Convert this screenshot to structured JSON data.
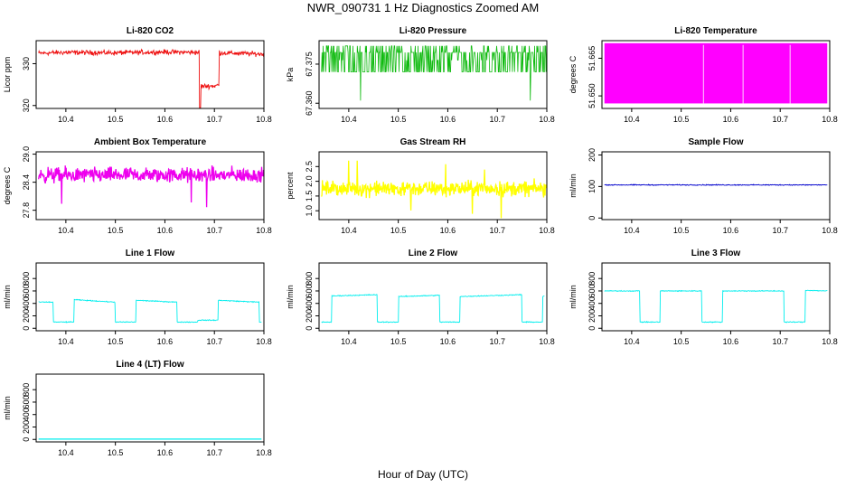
{
  "figure": {
    "title": "NWR_090731  1 Hz Diagnostics Zoomed AM",
    "xlabel": "Hour of Day (UTC)"
  },
  "chart_data": [
    {
      "id": "co2",
      "type": "line",
      "title": "Li-820 CO2",
      "ylabel": "Licor ppm",
      "color": "#ee1111",
      "xlim": [
        10.34,
        10.8
      ],
      "ylim": [
        319.3,
        335.5
      ],
      "xticks": [
        10.4,
        10.5,
        10.6,
        10.7,
        10.8
      ],
      "yticks": [
        320,
        330
      ],
      "x": [
        10.345,
        10.4,
        10.5,
        10.6,
        10.67,
        10.671,
        10.675,
        10.7,
        10.709,
        10.71,
        10.8
      ],
      "y": [
        332.5,
        332.7,
        332.6,
        332.8,
        332.7,
        325.0,
        324.6,
        324.7,
        324.9,
        332.6,
        332.3
      ],
      "noise": 0.5
    },
    {
      "id": "pressure",
      "type": "line",
      "title": "Li-820 Pressure",
      "ylabel": "kPa",
      "color": "#11bb11",
      "xlim": [
        10.34,
        10.8
      ],
      "ylim": [
        67.358,
        67.384
      ],
      "xticks": [
        10.4,
        10.5,
        10.6,
        10.7,
        10.8
      ],
      "yticks": [
        67.36,
        67.375
      ],
      "ytick_labels": [
        "67.360",
        "67.375"
      ],
      "x": [
        10.345,
        10.8
      ],
      "y": [
        67.372,
        67.372
      ],
      "levels": [
        67.382,
        67.3795,
        67.3765,
        67.372,
        67.368,
        67.361
      ]
    },
    {
      "id": "temperature",
      "type": "area",
      "title": "Li-820 Temperature",
      "ylabel": "degrees C",
      "color": "#ff00ff",
      "xlim": [
        10.34,
        10.8
      ],
      "ylim": [
        51.645,
        51.672
      ],
      "xticks": [
        10.4,
        10.5,
        10.6,
        10.7,
        10.8
      ],
      "yticks": [
        51.65,
        51.665
      ],
      "ytick_labels": [
        "51.650",
        "51.665"
      ],
      "x": [
        10.345,
        10.795
      ],
      "y": [
        51.671,
        51.671
      ],
      "baseline": 51.647
    },
    {
      "id": "ambient",
      "type": "line",
      "title": "Ambient Box Temperature",
      "ylabel": "degrees C",
      "color": "#ee00ee",
      "xlim": [
        10.34,
        10.8
      ],
      "ylim": [
        27.6,
        29.05
      ],
      "xticks": [
        10.4,
        10.5,
        10.6,
        10.7,
        10.8
      ],
      "yticks": [
        27.8,
        28.4,
        29.0
      ],
      "ytick_labels": [
        "27.8",
        "28.4",
        "29.0"
      ],
      "x": [
        10.345,
        10.8
      ],
      "y": [
        28.55,
        28.55
      ],
      "noise": 0.14
    },
    {
      "id": "rh",
      "type": "line",
      "title": "Gas Stream RH",
      "ylabel": "percent",
      "color": "#ffff00",
      "xlim": [
        10.34,
        10.8
      ],
      "ylim": [
        0.7,
        3.0
      ],
      "xticks": [
        10.4,
        10.5,
        10.6,
        10.7,
        10.8
      ],
      "yticks": [
        1.0,
        1.5,
        2.0,
        2.5
      ],
      "ytick_labels": [
        "1.0",
        "1.5",
        "2.0",
        "2.5"
      ],
      "x": [
        10.345,
        10.8
      ],
      "y": [
        1.75,
        1.75
      ],
      "noise": 0.22
    },
    {
      "id": "sample",
      "type": "line",
      "title": "Sample Flow",
      "ylabel": "ml/min",
      "color": "#0000cc",
      "xlim": [
        10.34,
        10.8
      ],
      "ylim": [
        -5,
        210
      ],
      "xticks": [
        10.4,
        10.5,
        10.6,
        10.7,
        10.8
      ],
      "yticks": [
        0,
        100,
        200
      ],
      "x": [
        10.345,
        10.795
      ],
      "y": [
        105,
        105
      ],
      "noise": 1.2
    },
    {
      "id": "line1",
      "type": "line",
      "title": "Line 1 Flow",
      "ylabel": "ml/min",
      "color": "#00eeee",
      "xlim": [
        10.34,
        10.8
      ],
      "ylim": [
        -40,
        1050
      ],
      "xticks": [
        10.4,
        10.5,
        10.6,
        10.7,
        10.8
      ],
      "yticks": [
        0,
        200,
        400,
        600,
        800
      ],
      "x": [
        10.345,
        10.374,
        10.375,
        10.416,
        10.417,
        10.499,
        10.5,
        10.541,
        10.542,
        10.624,
        10.625,
        10.666,
        10.667,
        10.707,
        10.708,
        10.79,
        10.791,
        10.795
      ],
      "y": [
        420,
        420,
        100,
        100,
        460,
        420,
        100,
        100,
        450,
        420,
        100,
        100,
        130,
        130,
        450,
        420,
        100,
        100
      ],
      "noise": 6
    },
    {
      "id": "line2",
      "type": "line",
      "title": "Line 2 Flow",
      "ylabel": "ml/min",
      "color": "#00eeee",
      "xlim": [
        10.34,
        10.8
      ],
      "ylim": [
        -40,
        1050
      ],
      "xticks": [
        10.4,
        10.5,
        10.6,
        10.7,
        10.8
      ],
      "yticks": [
        0,
        200,
        400,
        600,
        800
      ],
      "x": [
        10.345,
        10.365,
        10.366,
        10.457,
        10.458,
        10.5,
        10.501,
        10.583,
        10.584,
        10.624,
        10.625,
        10.749,
        10.75,
        10.791,
        10.792,
        10.795
      ],
      "y": [
        100,
        100,
        520,
        540,
        100,
        100,
        510,
        530,
        100,
        100,
        510,
        540,
        100,
        100,
        510,
        520
      ],
      "noise": 6
    },
    {
      "id": "line3",
      "type": "line",
      "title": "Line 3 Flow",
      "ylabel": "ml/min",
      "color": "#00eeee",
      "xlim": [
        10.34,
        10.8
      ],
      "ylim": [
        -40,
        1050
      ],
      "xticks": [
        10.4,
        10.5,
        10.6,
        10.7,
        10.8
      ],
      "yticks": [
        0,
        200,
        400,
        600,
        800
      ],
      "x": [
        10.345,
        10.416,
        10.417,
        10.457,
        10.458,
        10.541,
        10.542,
        10.583,
        10.584,
        10.707,
        10.708,
        10.75,
        10.751,
        10.795
      ],
      "y": [
        600,
        600,
        100,
        100,
        600,
        600,
        100,
        100,
        600,
        600,
        100,
        100,
        610,
        600
      ],
      "noise": 6
    },
    {
      "id": "line4",
      "type": "line",
      "title": "Line 4 (LT) Flow",
      "ylabel": "ml/min",
      "color": "#00eeee",
      "xlim": [
        10.34,
        10.8
      ],
      "ylim": [
        -40,
        1050
      ],
      "xticks": [
        10.4,
        10.5,
        10.6,
        10.7,
        10.8
      ],
      "yticks": [
        0,
        200,
        400,
        600,
        800
      ],
      "x": [
        10.345,
        10.795
      ],
      "y": [
        5,
        5
      ],
      "noise": 0
    }
  ]
}
